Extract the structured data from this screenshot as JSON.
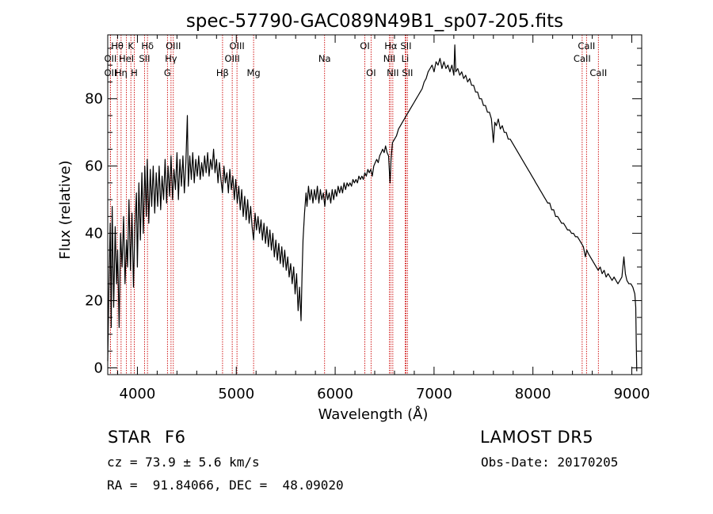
{
  "chart_data": {
    "type": "line",
    "title": "spec-57790-GAC089N49B1_sp07-205.fits",
    "xlabel": "Wavelength (Å)",
    "ylabel": "Flux (relative)",
    "xlim": [
      3700,
      9100
    ],
    "ylim": [
      -2,
      99
    ],
    "xticks": [
      4000,
      5000,
      6000,
      7000,
      8000,
      9000
    ],
    "xtick_labels": [
      "4000",
      "5000",
      "6000",
      "7000",
      "8000",
      "9000"
    ],
    "yticks": [
      0,
      20,
      40,
      60,
      80
    ],
    "ytick_labels": [
      "0",
      "20",
      "40",
      "60",
      "80"
    ],
    "grid": false,
    "line_color": "#000000",
    "marker_line_color": "#cc0000",
    "spectrum": [
      [
        3700,
        2
      ],
      [
        3710,
        20
      ],
      [
        3725,
        43
      ],
      [
        3735,
        12
      ],
      [
        3745,
        48
      ],
      [
        3760,
        18
      ],
      [
        3775,
        42
      ],
      [
        3790,
        25
      ],
      [
        3800,
        35
      ],
      [
        3815,
        12
      ],
      [
        3830,
        40
      ],
      [
        3845,
        30
      ],
      [
        3860,
        45
      ],
      [
        3875,
        25
      ],
      [
        3890,
        38
      ],
      [
        3900,
        30
      ],
      [
        3915,
        50
      ],
      [
        3930,
        29
      ],
      [
        3945,
        46
      ],
      [
        3960,
        24
      ],
      [
        3975,
        42
      ],
      [
        3990,
        52
      ],
      [
        4000,
        30
      ],
      [
        4015,
        55
      ],
      [
        4030,
        38
      ],
      [
        4045,
        58
      ],
      [
        4060,
        40
      ],
      [
        4075,
        60
      ],
      [
        4090,
        45
      ],
      [
        4100,
        62
      ],
      [
        4115,
        43
      ],
      [
        4130,
        59
      ],
      [
        4145,
        48
      ],
      [
        4160,
        60
      ],
      [
        4175,
        46
      ],
      [
        4190,
        58
      ],
      [
        4205,
        48
      ],
      [
        4220,
        60
      ],
      [
        4235,
        47
      ],
      [
        4250,
        57
      ],
      [
        4265,
        50
      ],
      [
        4280,
        62
      ],
      [
        4295,
        49
      ],
      [
        4310,
        60
      ],
      [
        4325,
        51
      ],
      [
        4340,
        63
      ],
      [
        4355,
        50
      ],
      [
        4370,
        59
      ],
      [
        4385,
        53
      ],
      [
        4400,
        64
      ],
      [
        4415,
        50
      ],
      [
        4430,
        62
      ],
      [
        4445,
        54
      ],
      [
        4460,
        63
      ],
      [
        4475,
        52
      ],
      [
        4490,
        61
      ],
      [
        4505,
        75
      ],
      [
        4515,
        54
      ],
      [
        4530,
        63
      ],
      [
        4545,
        56
      ],
      [
        4560,
        64
      ],
      [
        4575,
        55
      ],
      [
        4590,
        62
      ],
      [
        4605,
        57
      ],
      [
        4620,
        63
      ],
      [
        4635,
        56
      ],
      [
        4650,
        61
      ],
      [
        4665,
        57
      ],
      [
        4680,
        63
      ],
      [
        4695,
        58
      ],
      [
        4710,
        64
      ],
      [
        4725,
        57
      ],
      [
        4740,
        62
      ],
      [
        4755,
        59
      ],
      [
        4770,
        65
      ],
      [
        4785,
        58
      ],
      [
        4800,
        62
      ],
      [
        4815,
        55
      ],
      [
        4830,
        61
      ],
      [
        4845,
        56
      ],
      [
        4860,
        52
      ],
      [
        4875,
        60
      ],
      [
        4890,
        55
      ],
      [
        4905,
        58
      ],
      [
        4920,
        52
      ],
      [
        4935,
        59
      ],
      [
        4950,
        53
      ],
      [
        4965,
        57
      ],
      [
        4980,
        50
      ],
      [
        4995,
        56
      ],
      [
        5010,
        49
      ],
      [
        5025,
        54
      ],
      [
        5040,
        47
      ],
      [
        5055,
        53
      ],
      [
        5070,
        45
      ],
      [
        5085,
        51
      ],
      [
        5100,
        44
      ],
      [
        5115,
        50
      ],
      [
        5130,
        43
      ],
      [
        5145,
        48
      ],
      [
        5160,
        42
      ],
      [
        5175,
        38
      ],
      [
        5190,
        46
      ],
      [
        5205,
        41
      ],
      [
        5220,
        45
      ],
      [
        5235,
        40
      ],
      [
        5250,
        44
      ],
      [
        5265,
        38
      ],
      [
        5280,
        43
      ],
      [
        5295,
        37
      ],
      [
        5310,
        42
      ],
      [
        5325,
        36
      ],
      [
        5340,
        41
      ],
      [
        5355,
        35
      ],
      [
        5370,
        40
      ],
      [
        5385,
        33
      ],
      [
        5400,
        38
      ],
      [
        5415,
        32
      ],
      [
        5430,
        37
      ],
      [
        5445,
        31
      ],
      [
        5460,
        36
      ],
      [
        5475,
        30
      ],
      [
        5490,
        35
      ],
      [
        5505,
        29
      ],
      [
        5520,
        33
      ],
      [
        5535,
        27
      ],
      [
        5550,
        31
      ],
      [
        5565,
        25
      ],
      [
        5580,
        30
      ],
      [
        5595,
        22
      ],
      [
        5610,
        28
      ],
      [
        5625,
        17
      ],
      [
        5640,
        24
      ],
      [
        5655,
        14
      ],
      [
        5665,
        28
      ],
      [
        5675,
        38
      ],
      [
        5690,
        46
      ],
      [
        5705,
        52
      ],
      [
        5715,
        48
      ],
      [
        5730,
        54
      ],
      [
        5745,
        50
      ],
      [
        5760,
        53
      ],
      [
        5775,
        49
      ],
      [
        5790,
        53
      ],
      [
        5805,
        50
      ],
      [
        5820,
        54
      ],
      [
        5835,
        49
      ],
      [
        5850,
        53
      ],
      [
        5865,
        50
      ],
      [
        5880,
        52
      ],
      [
        5895,
        48
      ],
      [
        5910,
        53
      ],
      [
        5925,
        50
      ],
      [
        5940,
        52
      ],
      [
        5955,
        49
      ],
      [
        5970,
        53
      ],
      [
        5985,
        50
      ],
      [
        6000,
        53
      ],
      [
        6015,
        51
      ],
      [
        6030,
        54
      ],
      [
        6045,
        52
      ],
      [
        6060,
        54
      ],
      [
        6075,
        52
      ],
      [
        6090,
        55
      ],
      [
        6105,
        53
      ],
      [
        6120,
        55
      ],
      [
        6135,
        54
      ],
      [
        6150,
        55
      ],
      [
        6165,
        54
      ],
      [
        6180,
        56
      ],
      [
        6195,
        55
      ],
      [
        6210,
        56
      ],
      [
        6225,
        55
      ],
      [
        6240,
        57
      ],
      [
        6255,
        56
      ],
      [
        6270,
        57
      ],
      [
        6285,
        56
      ],
      [
        6300,
        58
      ],
      [
        6315,
        57
      ],
      [
        6330,
        59
      ],
      [
        6345,
        58
      ],
      [
        6360,
        59
      ],
      [
        6375,
        57
      ],
      [
        6390,
        60
      ],
      [
        6405,
        61
      ],
      [
        6420,
        62
      ],
      [
        6435,
        61
      ],
      [
        6450,
        63
      ],
      [
        6465,
        64
      ],
      [
        6480,
        65
      ],
      [
        6495,
        64
      ],
      [
        6510,
        66
      ],
      [
        6525,
        64
      ],
      [
        6540,
        63
      ],
      [
        6555,
        55
      ],
      [
        6565,
        62
      ],
      [
        6580,
        67
      ],
      [
        6600,
        68
      ],
      [
        6620,
        69
      ],
      [
        6640,
        71
      ],
      [
        6660,
        72
      ],
      [
        6680,
        73
      ],
      [
        6700,
        74
      ],
      [
        6720,
        75
      ],
      [
        6740,
        76
      ],
      [
        6760,
        77
      ],
      [
        6780,
        78
      ],
      [
        6800,
        79
      ],
      [
        6820,
        80
      ],
      [
        6840,
        81
      ],
      [
        6860,
        82
      ],
      [
        6880,
        83
      ],
      [
        6900,
        85
      ],
      [
        6920,
        86
      ],
      [
        6940,
        88
      ],
      [
        6960,
        89
      ],
      [
        6980,
        90
      ],
      [
        7000,
        88
      ],
      [
        7020,
        91
      ],
      [
        7040,
        90
      ],
      [
        7060,
        92
      ],
      [
        7080,
        89
      ],
      [
        7100,
        91
      ],
      [
        7120,
        89
      ],
      [
        7140,
        90
      ],
      [
        7160,
        88
      ],
      [
        7180,
        90
      ],
      [
        7200,
        87
      ],
      [
        7210,
        96
      ],
      [
        7220,
        88
      ],
      [
        7240,
        89
      ],
      [
        7260,
        87
      ],
      [
        7280,
        88
      ],
      [
        7300,
        86
      ],
      [
        7320,
        87
      ],
      [
        7340,
        85
      ],
      [
        7360,
        86
      ],
      [
        7380,
        84
      ],
      [
        7400,
        84
      ],
      [
        7420,
        82
      ],
      [
        7440,
        82
      ],
      [
        7460,
        80
      ],
      [
        7480,
        80
      ],
      [
        7500,
        78
      ],
      [
        7520,
        78
      ],
      [
        7540,
        76
      ],
      [
        7560,
        76
      ],
      [
        7580,
        74
      ],
      [
        7600,
        67
      ],
      [
        7615,
        73
      ],
      [
        7630,
        72
      ],
      [
        7650,
        74
      ],
      [
        7670,
        71
      ],
      [
        7690,
        72
      ],
      [
        7710,
        70
      ],
      [
        7730,
        70
      ],
      [
        7750,
        68
      ],
      [
        7770,
        68
      ],
      [
        7790,
        67
      ],
      [
        7810,
        66
      ],
      [
        7830,
        65
      ],
      [
        7850,
        64
      ],
      [
        7870,
        63
      ],
      [
        7890,
        62
      ],
      [
        7910,
        61
      ],
      [
        7930,
        60
      ],
      [
        7950,
        59
      ],
      [
        7970,
        58
      ],
      [
        7990,
        57
      ],
      [
        8010,
        56
      ],
      [
        8030,
        55
      ],
      [
        8050,
        54
      ],
      [
        8070,
        53
      ],
      [
        8090,
        52
      ],
      [
        8110,
        51
      ],
      [
        8130,
        50
      ],
      [
        8150,
        49
      ],
      [
        8170,
        49
      ],
      [
        8190,
        47
      ],
      [
        8210,
        47
      ],
      [
        8230,
        45
      ],
      [
        8250,
        45
      ],
      [
        8270,
        44
      ],
      [
        8290,
        43
      ],
      [
        8310,
        43
      ],
      [
        8330,
        42
      ],
      [
        8350,
        41
      ],
      [
        8370,
        41
      ],
      [
        8390,
        40
      ],
      [
        8410,
        40
      ],
      [
        8430,
        39
      ],
      [
        8450,
        39
      ],
      [
        8470,
        38
      ],
      [
        8490,
        37
      ],
      [
        8510,
        36
      ],
      [
        8530,
        33
      ],
      [
        8545,
        35
      ],
      [
        8560,
        34
      ],
      [
        8580,
        33
      ],
      [
        8600,
        32
      ],
      [
        8620,
        31
      ],
      [
        8640,
        30
      ],
      [
        8660,
        29
      ],
      [
        8680,
        30
      ],
      [
        8700,
        28
      ],
      [
        8720,
        29
      ],
      [
        8740,
        27
      ],
      [
        8760,
        28
      ],
      [
        8780,
        27
      ],
      [
        8800,
        26
      ],
      [
        8820,
        27
      ],
      [
        8840,
        26
      ],
      [
        8860,
        25
      ],
      [
        8880,
        26
      ],
      [
        8900,
        27
      ],
      [
        8920,
        33
      ],
      [
        8935,
        28
      ],
      [
        8950,
        26
      ],
      [
        8970,
        25
      ],
      [
        8990,
        25
      ],
      [
        9010,
        24
      ],
      [
        9030,
        22
      ],
      [
        9040,
        18
      ],
      [
        9045,
        8
      ],
      [
        9050,
        -1
      ]
    ],
    "lines": [
      {
        "label": "Hθ",
        "wl": 3797,
        "row": 1
      },
      {
        "label": "OII",
        "wl": 3727,
        "row": 2
      },
      {
        "label": "OII",
        "wl": 3727,
        "row": 3
      },
      {
        "label": "Hη",
        "wl": 3835,
        "row": 3
      },
      {
        "label": "K",
        "wl": 3934,
        "row": 1
      },
      {
        "label": "HeI",
        "wl": 3889,
        "row": 2
      },
      {
        "label": "H",
        "wl": 3968,
        "row": 3
      },
      {
        "label": "Hδ",
        "wl": 4102,
        "row": 1
      },
      {
        "label": "SII",
        "wl": 4072,
        "row": 2
      },
      {
        "label": "OIII",
        "wl": 4363,
        "row": 1
      },
      {
        "label": "Hγ",
        "wl": 4340,
        "row": 2
      },
      {
        "label": "G",
        "wl": 4304,
        "row": 3
      },
      {
        "label": "OIII",
        "wl": 5007,
        "row": 1
      },
      {
        "label": "OIII",
        "wl": 4959,
        "row": 2
      },
      {
        "label": "Hβ",
        "wl": 4861,
        "row": 3
      },
      {
        "label": "Mg",
        "wl": 5175,
        "row": 3
      },
      {
        "label": "Na",
        "wl": 5893,
        "row": 2
      },
      {
        "label": "OI",
        "wl": 6300,
        "row": 1
      },
      {
        "label": "OI",
        "wl": 6363,
        "row": 3
      },
      {
        "label": "Hα",
        "wl": 6563,
        "row": 1
      },
      {
        "label": "NII",
        "wl": 6548,
        "row": 2
      },
      {
        "label": "NII",
        "wl": 6583,
        "row": 3
      },
      {
        "label": "SII",
        "wl": 6716,
        "row": 1
      },
      {
        "label": "Li",
        "wl": 6708,
        "row": 2
      },
      {
        "label": "SII",
        "wl": 6731,
        "row": 3
      },
      {
        "label": "CaII",
        "wl": 8542,
        "row": 1
      },
      {
        "label": "CaII",
        "wl": 8498,
        "row": 2
      },
      {
        "label": "CaII",
        "wl": 8662,
        "row": 3
      }
    ]
  },
  "info": {
    "class_label": "STAR",
    "subclass_label": "F6",
    "survey_label": "LAMOST DR5",
    "cz_text": "cz = 73.9 ± 5.6 km/s",
    "obs_date_text": "Obs-Date: 20170205",
    "radec_text": "RA =  91.84066, DEC =  48.09020"
  }
}
